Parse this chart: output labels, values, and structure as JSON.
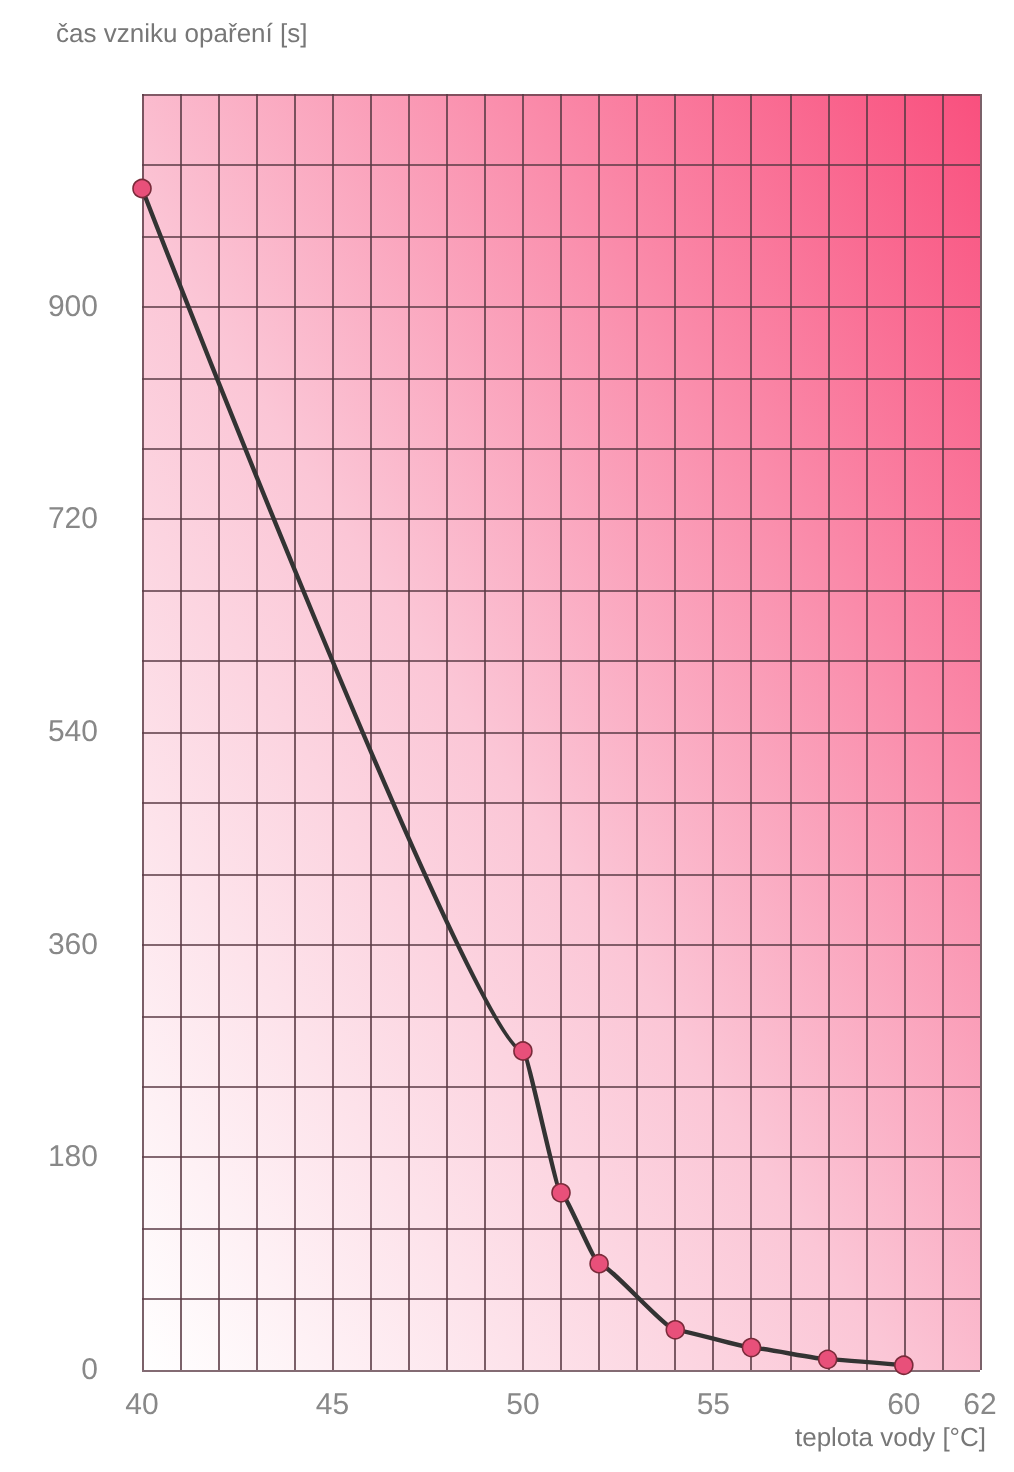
{
  "chart_data": {
    "type": "line",
    "ylabel": "čas vzniku opaření [s]",
    "xlabel": "teplota vody [°C]",
    "x": [
      40,
      50,
      51,
      52,
      54,
      56,
      58,
      60
    ],
    "series": [
      {
        "color": "#e8507a",
        "values": [
          1000,
          270,
          150,
          90,
          34,
          19,
          9,
          4
        ]
      }
    ],
    "xlim": [
      40,
      62
    ],
    "xticks": [
      40,
      {
        "value": 41,
        "label": null
      },
      {
        "value": 42,
        "label": null
      },
      {
        "value": 43,
        "label": null
      },
      {
        "value": 44,
        "label": null
      },
      45,
      {
        "value": 46,
        "label": null
      },
      {
        "value": 47,
        "label": null
      },
      {
        "value": 48,
        "label": null
      },
      {
        "value": 49,
        "label": null
      },
      50,
      {
        "value": 51,
        "label": null
      },
      {
        "value": 52,
        "label": null
      },
      {
        "value": 53,
        "label": null
      },
      {
        "value": 54,
        "label": null
      },
      55,
      {
        "value": 56,
        "label": null
      },
      {
        "value": 57,
        "label": null
      },
      {
        "value": 58,
        "label": null
      },
      {
        "value": 59,
        "label": null
      },
      60,
      {
        "value": 61,
        "label": null
      },
      62
    ],
    "ylim": [
      0,
      1080
    ],
    "yticks": [
      0,
      {
        "value": 60,
        "label": null
      },
      {
        "value": 120,
        "label": null
      },
      180,
      {
        "value": 240,
        "label": null
      },
      {
        "value": 300,
        "label": null
      },
      360,
      {
        "value": 420,
        "label": null
      },
      {
        "value": 480,
        "label": null
      },
      540,
      {
        "value": 600,
        "label": null
      },
      {
        "value": 660,
        "label": null
      },
      720,
      {
        "value": 780,
        "label": null
      },
      {
        "value": 840,
        "label": null
      },
      900,
      {
        "value": 960,
        "label": null
      },
      {
        "value": 1020,
        "label": null
      },
      {
        "value": 1080,
        "label": null
      }
    ],
    "grid": true,
    "marker": "circle",
    "line_style": "solid"
  }
}
